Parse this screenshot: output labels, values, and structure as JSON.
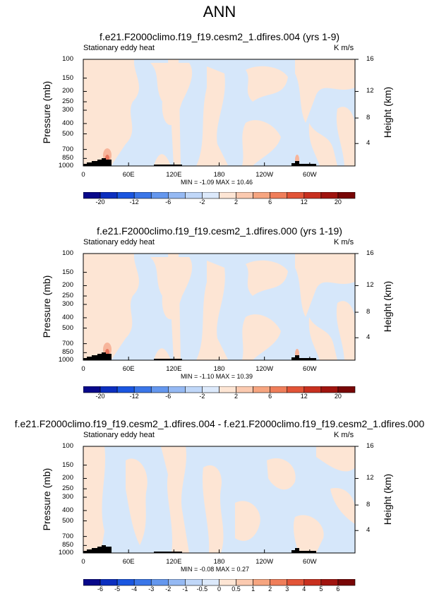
{
  "figure": {
    "title": "ANN",
    "colors": {
      "warm_light": "#fde5d4",
      "cool_light": "#d6e7fa",
      "warm_2": "#f7b59b",
      "warm_3": "#e8755d",
      "land": "#000000",
      "frame": "#000000"
    }
  },
  "panels": [
    {
      "title": "f.e21.F2000climo.f19_f19.cesm2_1.dfires.004 (yrs 1-9)",
      "left_label": "Stationary eddy heat",
      "right_label": "K m/s",
      "y_axis_label": "Pressure (mb)",
      "y2_axis_label": "Height (km)",
      "pressure_ticks": [
        "100",
        "150",
        "200",
        "250",
        "300",
        "400",
        "500",
        "700",
        "850",
        "1000"
      ],
      "height_ticks": [
        "16",
        "12",
        "8",
        "4"
      ],
      "lon_ticks": [
        "0",
        "60E",
        "120E",
        "180",
        "120W",
        "60W"
      ],
      "minmax": "MIN = -1.09  MAX = 10.46",
      "colorbar_labels": [
        "-20",
        "-12",
        "-6",
        "-2",
        "2",
        "6",
        "12",
        "20"
      ],
      "colorbar_colors": [
        "#08088a",
        "#0c2fbf",
        "#1a56e0",
        "#3a76e8",
        "#6497ee",
        "#95b9f3",
        "#c0d7f8",
        "#dce9fb",
        "#fde5d4",
        "#fbcab0",
        "#f6a580",
        "#ef7e5a",
        "#e25437",
        "#c8301f",
        "#a0140f",
        "#780606"
      ]
    },
    {
      "title": "f.e21.F2000climo.f19_f19.cesm2_1.dfires.000 (yrs 1-19)",
      "left_label": "Stationary eddy heat",
      "right_label": "K m/s",
      "y_axis_label": "Pressure (mb)",
      "y2_axis_label": "Height (km)",
      "pressure_ticks": [
        "100",
        "150",
        "200",
        "250",
        "300",
        "400",
        "500",
        "700",
        "850",
        "1000"
      ],
      "height_ticks": [
        "16",
        "12",
        "8",
        "4"
      ],
      "lon_ticks": [
        "0",
        "60E",
        "120E",
        "180",
        "120W",
        "60W"
      ],
      "minmax": "MIN = -1.10  MAX = 10.39",
      "colorbar_labels": [
        "-20",
        "-12",
        "-6",
        "-2",
        "2",
        "6",
        "12",
        "20"
      ],
      "colorbar_colors": [
        "#08088a",
        "#0c2fbf",
        "#1a56e0",
        "#3a76e8",
        "#6497ee",
        "#95b9f3",
        "#c0d7f8",
        "#dce9fb",
        "#fde5d4",
        "#fbcab0",
        "#f6a580",
        "#ef7e5a",
        "#e25437",
        "#c8301f",
        "#a0140f",
        "#780606"
      ]
    },
    {
      "title": "f.e21.F2000climo.f19_f19.cesm2_1.dfires.004 - f.e21.F2000climo.f19_f19.cesm2_1.dfires.000",
      "left_label": "Stationary eddy heat",
      "right_label": "K m/s",
      "y_axis_label": "Pressure (mb)",
      "y2_axis_label": "Height (km)",
      "pressure_ticks": [
        "100",
        "150",
        "200",
        "250",
        "300",
        "400",
        "500",
        "700",
        "850",
        "1000"
      ],
      "height_ticks": [
        "16",
        "12",
        "8",
        "4"
      ],
      "lon_ticks": [
        "0",
        "60E",
        "120E",
        "180",
        "120W",
        "60W"
      ],
      "minmax": "MIN = -0.08  MAX =  0.27",
      "colorbar_labels": [
        "-6",
        "-5",
        "-4",
        "-3",
        "-2",
        "-1",
        "-0.5",
        "0",
        "0.5",
        "1",
        "2",
        "3",
        "4",
        "5",
        "6"
      ],
      "colorbar_colors": [
        "#08088a",
        "#0c2fbf",
        "#1a56e0",
        "#3a76e8",
        "#6497ee",
        "#95b9f3",
        "#c0d7f8",
        "#dce9fb",
        "#fde5d4",
        "#fbcab0",
        "#f6a580",
        "#ef7e5a",
        "#e25437",
        "#c8301f",
        "#a0140f",
        "#780606"
      ]
    }
  ],
  "chart_data": [
    {
      "type": "heatmap",
      "title": "f.e21.F2000climo.f19_f19.cesm2_1.dfires.004 (yrs 1-9)",
      "xlabel": "",
      "ylabel": "Pressure (mb)",
      "y2label": "Height (km)",
      "variable": "Stationary eddy heat",
      "units": "K m/s",
      "x_ticks": [
        "0",
        "60E",
        "120E",
        "180",
        "120W",
        "60W"
      ],
      "xlim": [
        0,
        360
      ],
      "y_ticks": [
        100,
        150,
        200,
        250,
        300,
        400,
        500,
        700,
        850,
        1000
      ],
      "ylim": [
        1000,
        100
      ],
      "y_scale": "log",
      "y2_ticks": [
        16,
        12,
        8,
        4
      ],
      "min": -1.09,
      "max": 10.46,
      "contour_levels": [
        -20,
        -16,
        -12,
        -9,
        -6,
        -4,
        -2,
        -1,
        1,
        2,
        4,
        6,
        9,
        12,
        16,
        20
      ]
    },
    {
      "type": "heatmap",
      "title": "f.e21.F2000climo.f19_f19.cesm2_1.dfires.000 (yrs 1-19)",
      "xlabel": "",
      "ylabel": "Pressure (mb)",
      "y2label": "Height (km)",
      "variable": "Stationary eddy heat",
      "units": "K m/s",
      "x_ticks": [
        "0",
        "60E",
        "120E",
        "180",
        "120W",
        "60W"
      ],
      "xlim": [
        0,
        360
      ],
      "y_ticks": [
        100,
        150,
        200,
        250,
        300,
        400,
        500,
        700,
        850,
        1000
      ],
      "ylim": [
        1000,
        100
      ],
      "y_scale": "log",
      "y2_ticks": [
        16,
        12,
        8,
        4
      ],
      "min": -1.1,
      "max": 10.39,
      "contour_levels": [
        -20,
        -16,
        -12,
        -9,
        -6,
        -4,
        -2,
        -1,
        1,
        2,
        4,
        6,
        9,
        12,
        16,
        20
      ]
    },
    {
      "type": "heatmap",
      "title": "f.e21.F2000climo.f19_f19.cesm2_1.dfires.004 - f.e21.F2000climo.f19_f19.cesm2_1.dfires.000",
      "xlabel": "",
      "ylabel": "Pressure (mb)",
      "y2label": "Height (km)",
      "variable": "Stationary eddy heat",
      "units": "K m/s",
      "x_ticks": [
        "0",
        "60E",
        "120E",
        "180",
        "120W",
        "60W"
      ],
      "xlim": [
        0,
        360
      ],
      "y_ticks": [
        100,
        150,
        200,
        250,
        300,
        400,
        500,
        700,
        850,
        1000
      ],
      "ylim": [
        1000,
        100
      ],
      "y_scale": "log",
      "y2_ticks": [
        16,
        12,
        8,
        4
      ],
      "min": -0.08,
      "max": 0.27,
      "contour_levels": [
        -6,
        -5,
        -4,
        -3,
        -2,
        -1,
        -0.5,
        0,
        0.5,
        1,
        2,
        3,
        4,
        5,
        6
      ]
    }
  ]
}
